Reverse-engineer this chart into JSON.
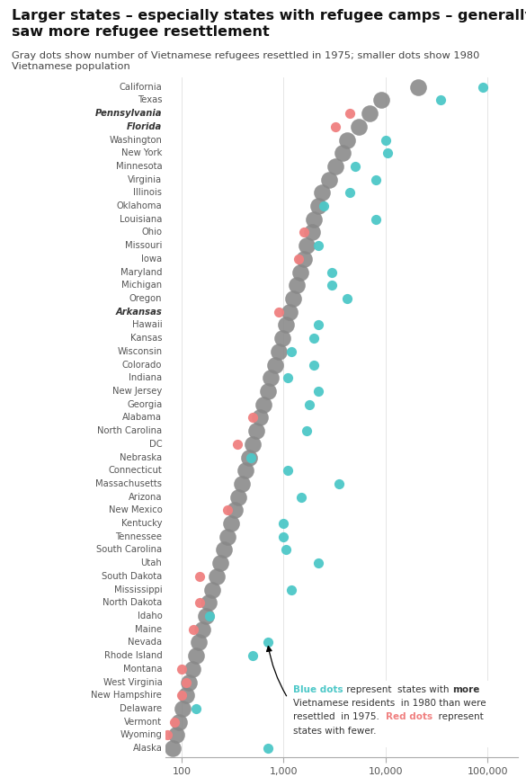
{
  "title": "Larger states – especially states with refugee camps – generally\nsaw more refugee resettlement",
  "subtitle": "Gray dots show number of Vietnamese refugees resettled in 1975; smaller dots show 1980\nVietnamese population",
  "states": [
    {
      "name": "California",
      "resettled_1975": 21000,
      "pop_1980": 90000,
      "camp": false
    },
    {
      "name": "Texas",
      "resettled_1975": 9000,
      "pop_1980": 35000,
      "camp": false
    },
    {
      "name": "Pennsylvania",
      "resettled_1975": 7000,
      "pop_1980": 4500,
      "camp": true
    },
    {
      "name": "Florida",
      "resettled_1975": 5500,
      "pop_1980": 3200,
      "camp": true
    },
    {
      "name": "Washington",
      "resettled_1975": 4200,
      "pop_1980": 10000,
      "camp": false
    },
    {
      "name": "New York",
      "resettled_1975": 3800,
      "pop_1980": 10500,
      "camp": false
    },
    {
      "name": "Minnesota",
      "resettled_1975": 3200,
      "pop_1980": 5000,
      "camp": false
    },
    {
      "name": "Virginia",
      "resettled_1975": 2800,
      "pop_1980": 8000,
      "camp": false
    },
    {
      "name": "Illinois",
      "resettled_1975": 2400,
      "pop_1980": 4500,
      "camp": false
    },
    {
      "name": "Oklahoma",
      "resettled_1975": 2200,
      "pop_1980": 2500,
      "camp": false
    },
    {
      "name": "Louisiana",
      "resettled_1975": 2000,
      "pop_1980": 8000,
      "camp": false
    },
    {
      "name": "Ohio",
      "resettled_1975": 1900,
      "pop_1980": 1600,
      "camp": false
    },
    {
      "name": "Missouri",
      "resettled_1975": 1700,
      "pop_1980": 2200,
      "camp": false
    },
    {
      "name": "Iowa",
      "resettled_1975": 1600,
      "pop_1980": 1400,
      "camp": false
    },
    {
      "name": "Maryland",
      "resettled_1975": 1450,
      "pop_1980": 3000,
      "camp": false
    },
    {
      "name": "Michigan",
      "resettled_1975": 1350,
      "pop_1980": 3000,
      "camp": false
    },
    {
      "name": "Oregon",
      "resettled_1975": 1250,
      "pop_1980": 4200,
      "camp": false
    },
    {
      "name": "Arkansas",
      "resettled_1975": 1150,
      "pop_1980": 900,
      "camp": true
    },
    {
      "name": "Hawaii",
      "resettled_1975": 1050,
      "pop_1980": 2200,
      "camp": false
    },
    {
      "name": "Kansas",
      "resettled_1975": 970,
      "pop_1980": 2000,
      "camp": false
    },
    {
      "name": "Wisconsin",
      "resettled_1975": 890,
      "pop_1980": 1200,
      "camp": false
    },
    {
      "name": "Colorado",
      "resettled_1975": 820,
      "pop_1980": 2000,
      "camp": false
    },
    {
      "name": "Indiana",
      "resettled_1975": 750,
      "pop_1980": 1100,
      "camp": false
    },
    {
      "name": "New Jersey",
      "resettled_1975": 700,
      "pop_1980": 2200,
      "camp": false
    },
    {
      "name": "Georgia",
      "resettled_1975": 640,
      "pop_1980": 1800,
      "camp": false
    },
    {
      "name": "Alabama",
      "resettled_1975": 590,
      "pop_1980": 500,
      "camp": false
    },
    {
      "name": "North Carolina",
      "resettled_1975": 540,
      "pop_1980": 1700,
      "camp": false
    },
    {
      "name": "DC",
      "resettled_1975": 500,
      "pop_1980": 350,
      "camp": false
    },
    {
      "name": "Nebraska",
      "resettled_1975": 460,
      "pop_1980": 480,
      "camp": false
    },
    {
      "name": "Connecticut",
      "resettled_1975": 420,
      "pop_1980": 1100,
      "camp": false
    },
    {
      "name": "Massachusetts",
      "resettled_1975": 390,
      "pop_1980": 3500,
      "camp": false
    },
    {
      "name": "Arizona",
      "resettled_1975": 360,
      "pop_1980": 1500,
      "camp": false
    },
    {
      "name": "New Mexico",
      "resettled_1975": 330,
      "pop_1980": 280,
      "camp": false
    },
    {
      "name": "Kentucky",
      "resettled_1975": 305,
      "pop_1980": 1000,
      "camp": false
    },
    {
      "name": "Tennessee",
      "resettled_1975": 280,
      "pop_1980": 1000,
      "camp": false
    },
    {
      "name": "South Carolina",
      "resettled_1975": 258,
      "pop_1980": 1050,
      "camp": false
    },
    {
      "name": "Utah",
      "resettled_1975": 238,
      "pop_1980": 2200,
      "camp": false
    },
    {
      "name": "South Dakota",
      "resettled_1975": 220,
      "pop_1980": 150,
      "camp": false
    },
    {
      "name": "Mississippi",
      "resettled_1975": 202,
      "pop_1980": 1200,
      "camp": false
    },
    {
      "name": "North Dakota",
      "resettled_1975": 186,
      "pop_1980": 150,
      "camp": false
    },
    {
      "name": "Idaho",
      "resettled_1975": 172,
      "pop_1980": 190,
      "camp": false
    },
    {
      "name": "Maine",
      "resettled_1975": 160,
      "pop_1980": 130,
      "camp": false
    },
    {
      "name": "Nevada",
      "resettled_1975": 148,
      "pop_1980": 700,
      "camp": false
    },
    {
      "name": "Rhode Island",
      "resettled_1975": 138,
      "pop_1980": 500,
      "camp": false
    },
    {
      "name": "Montana",
      "resettled_1975": 128,
      "pop_1980": 100,
      "camp": false
    },
    {
      "name": "West Virginia",
      "resettled_1975": 118,
      "pop_1980": 110,
      "camp": false
    },
    {
      "name": "New Hampshire",
      "resettled_1975": 110,
      "pop_1980": 100,
      "camp": false
    },
    {
      "name": "Delaware",
      "resettled_1975": 102,
      "pop_1980": 140,
      "camp": false
    },
    {
      "name": "Vermont",
      "resettled_1975": 95,
      "pop_1980": 85,
      "camp": false
    },
    {
      "name": "Wyoming",
      "resettled_1975": 88,
      "pop_1980": 72,
      "camp": false
    },
    {
      "name": "Alaska",
      "resettled_1975": 82,
      "pop_1980": 700,
      "camp": false
    }
  ],
  "gray_color": "#888888",
  "blue_color": "#4DC8C8",
  "red_color": "#F08080",
  "large_dot_size": 180,
  "small_dot_size": 65,
  "xlim_log": [
    1.845,
    5.3
  ],
  "xticks": [
    100,
    1000,
    10000,
    100000
  ],
  "xtick_labels": [
    "100",
    "1,000",
    "10,000",
    "100,000"
  ]
}
